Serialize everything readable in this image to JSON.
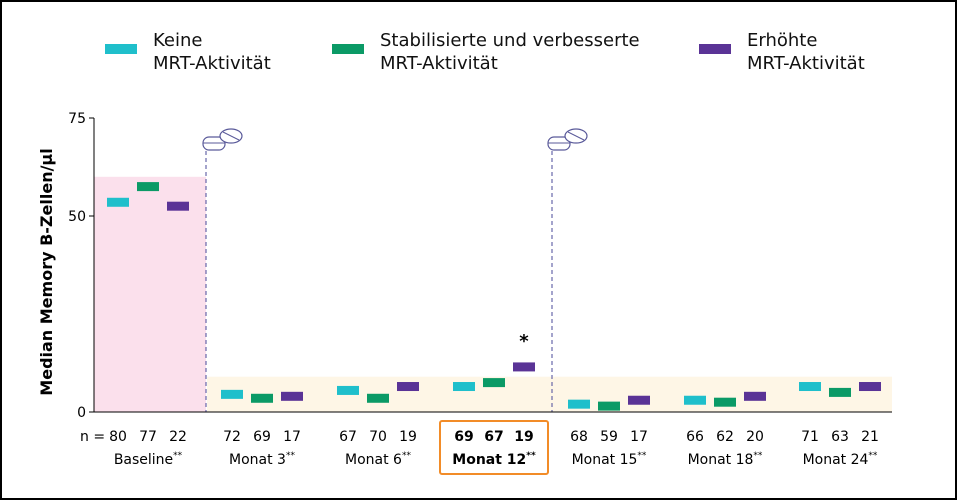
{
  "legend": [
    {
      "label": "Keine\nMRT-Aktivität",
      "color": "#1FBFCB"
    },
    {
      "label": "Stabilisierte und verbesserte\nMRT-Aktivität",
      "color": "#0B9A66"
    },
    {
      "label": "Erhöhte\nMRT-Aktivität",
      "color": "#5A3396"
    }
  ],
  "chart_data": {
    "type": "scatter",
    "ylabel": "Median Memory B-Zellen/µl",
    "ylim": [
      0,
      75
    ],
    "yticks": [
      0,
      50,
      75
    ],
    "series": [
      {
        "name": "Keine MRT-Aktivität",
        "color": "#1FBFCB",
        "values": [
          53.5,
          4.5,
          5.5,
          6.5,
          2,
          3,
          6.5
        ]
      },
      {
        "name": "Stabilisierte und verbesserte MRT-Aktivität",
        "color": "#0B9A66",
        "values": [
          57.5,
          3.5,
          3.5,
          7.5,
          1.5,
          2.5,
          5
        ]
      },
      {
        "name": "Erhöhte MRT-Aktivität",
        "color": "#5A3396",
        "values": [
          52.5,
          4,
          6.5,
          11.5,
          3,
          4,
          6.5
        ]
      }
    ],
    "groups": [
      {
        "label": "Baseline",
        "suffix": "**",
        "n": [
          "80",
          "77",
          "22"
        ],
        "highlight": false
      },
      {
        "label": "Monat 3",
        "suffix": "**",
        "n": [
          "72",
          "69",
          "17"
        ],
        "highlight": false
      },
      {
        "label": "Monat 6",
        "suffix": "**",
        "n": [
          "67",
          "70",
          "19"
        ],
        "highlight": false
      },
      {
        "label": "Monat 12",
        "suffix": "**",
        "n": [
          "69",
          "67",
          "19"
        ],
        "highlight": true
      },
      {
        "label": "Monat 15",
        "suffix": "**",
        "n": [
          "68",
          "59",
          "17"
        ],
        "highlight": false
      },
      {
        "label": "Monat 18",
        "suffix": "**",
        "n": [
          "66",
          "62",
          "20"
        ],
        "highlight": false
      },
      {
        "label": "Monat 24",
        "suffix": "**",
        "n": [
          "71",
          "63",
          "21"
        ],
        "highlight": false
      }
    ],
    "n_prefix": "n = ",
    "annotation": "*",
    "colors": {
      "baseline_band": "#FBE0EC",
      "treatment_band": "#FEF6E6",
      "highlight_box": "#F28C28",
      "dashed_line": "#4A4A9A"
    }
  }
}
